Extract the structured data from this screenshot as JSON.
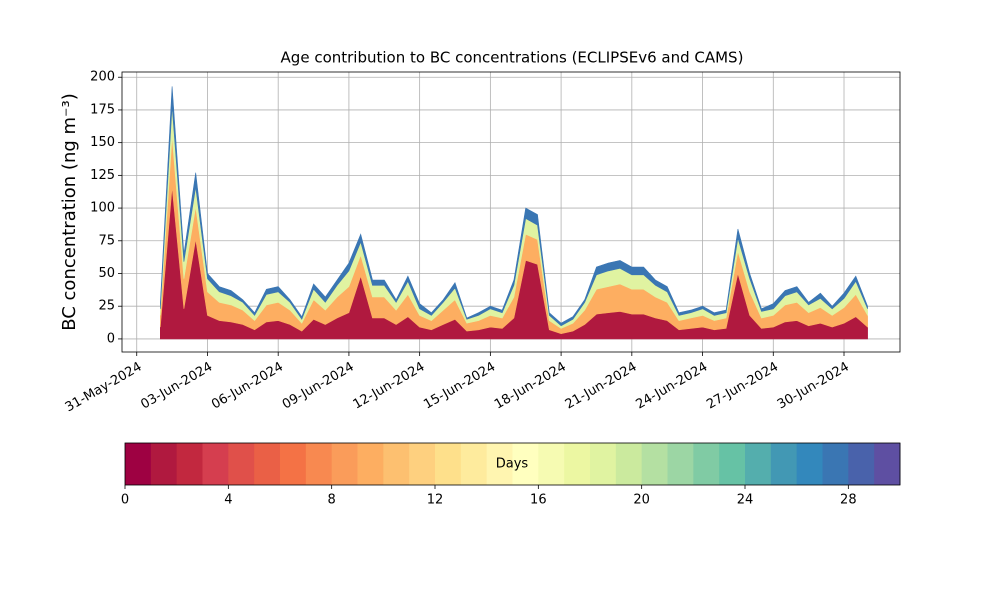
{
  "chart_data": [
    {
      "type": "stacked-area",
      "title": "Age contribution to BC concentrations (ECLIPSEv6 and CAMS)",
      "y_label": "BC concentration (ng m⁻³)",
      "x": [
        "2024-06-01 00:00",
        "2024-06-01 12:00",
        "2024-06-02 00:00",
        "2024-06-02 12:00",
        "2024-06-03 00:00",
        "2024-06-03 12:00",
        "2024-06-04 00:00",
        "2024-06-04 12:00",
        "2024-06-05 00:00",
        "2024-06-05 12:00",
        "2024-06-06 00:00",
        "2024-06-06 12:00",
        "2024-06-07 00:00",
        "2024-06-07 12:00",
        "2024-06-08 00:00",
        "2024-06-08 12:00",
        "2024-06-09 00:00",
        "2024-06-09 12:00",
        "2024-06-10 00:00",
        "2024-06-10 12:00",
        "2024-06-11 00:00",
        "2024-06-11 12:00",
        "2024-06-12 00:00",
        "2024-06-12 12:00",
        "2024-06-13 00:00",
        "2024-06-13 12:00",
        "2024-06-14 00:00",
        "2024-06-14 12:00",
        "2024-06-15 00:00",
        "2024-06-15 12:00",
        "2024-06-16 00:00",
        "2024-06-16 12:00",
        "2024-06-17 00:00",
        "2024-06-17 12:00",
        "2024-06-18 00:00",
        "2024-06-18 12:00",
        "2024-06-19 00:00",
        "2024-06-19 12:00",
        "2024-06-20 00:00",
        "2024-06-20 12:00",
        "2024-06-21 00:00",
        "2024-06-21 12:00",
        "2024-06-22 00:00",
        "2024-06-22 12:00",
        "2024-06-23 00:00",
        "2024-06-23 12:00",
        "2024-06-24 00:00",
        "2024-06-24 12:00",
        "2024-06-25 00:00",
        "2024-06-25 12:00",
        "2024-06-26 00:00",
        "2024-06-26 12:00",
        "2024-06-27 00:00",
        "2024-06-27 12:00",
        "2024-06-28 00:00",
        "2024-06-28 12:00",
        "2024-06-29 00:00",
        "2024-06-29 12:00",
        "2024-06-30 00:00",
        "2024-06-30 12:00",
        "2024-07-01 00:00"
      ],
      "series": [
        {
          "color": "#b0193f",
          "values": [
            9,
            116,
            23,
            76,
            18,
            14,
            13,
            11,
            7,
            13,
            14,
            11,
            6,
            15,
            11,
            16,
            20,
            48,
            16,
            16,
            11,
            17,
            9,
            7,
            11,
            15,
            6,
            7,
            9,
            8,
            16,
            60,
            57,
            7,
            4,
            6,
            11,
            19,
            20,
            21,
            19,
            19,
            16,
            14,
            7,
            8,
            9,
            7,
            8,
            50,
            18,
            8,
            9,
            13,
            14,
            10,
            12,
            9,
            12,
            17,
            9
          ]
        },
        {
          "color": "#fdae61",
          "values": [
            9,
            39,
            23,
            25,
            18,
            14,
            13,
            11,
            7,
            13,
            14,
            11,
            6,
            15,
            11,
            16,
            20,
            16,
            16,
            16,
            11,
            17,
            9,
            7,
            11,
            15,
            6,
            7,
            9,
            8,
            16,
            20,
            19,
            7,
            4,
            6,
            11,
            19,
            20,
            21,
            19,
            19,
            16,
            14,
            7,
            8,
            9,
            7,
            8,
            17,
            18,
            8,
            9,
            13,
            14,
            10,
            12,
            9,
            12,
            17,
            9
          ]
        },
        {
          "color": "#e0f3a1",
          "values": [
            5,
            23,
            13,
            15,
            10,
            8,
            7,
            6,
            4,
            8,
            8,
            6,
            3,
            8,
            6,
            9,
            12,
            10,
            9,
            9,
            6,
            10,
            5,
            4,
            6,
            9,
            3,
            4,
            5,
            4,
            9,
            12,
            11,
            4,
            2,
            3,
            6,
            11,
            12,
            12,
            11,
            11,
            9,
            8,
            4,
            4,
            5,
            4,
            4,
            10,
            10,
            5,
            5,
            7,
            8,
            6,
            7,
            5,
            7,
            10,
            5
          ]
        },
        {
          "color": "#3a76b3",
          "values": [
            4,
            15,
            6,
            11,
            4,
            4,
            4,
            2,
            2,
            4,
            4,
            2,
            2,
            4,
            4,
            4,
            6,
            6,
            4,
            4,
            2,
            4,
            4,
            2,
            2,
            4,
            1,
            2,
            2,
            2,
            4,
            8,
            8,
            2,
            2,
            2,
            2,
            6,
            6,
            6,
            6,
            6,
            4,
            4,
            2,
            2,
            2,
            2,
            2,
            7,
            4,
            2,
            4,
            4,
            4,
            2,
            4,
            2,
            4,
            4,
            2
          ]
        }
      ],
      "xlim": [
        "2024-05-30 09:00",
        "2024-07-02 09:00"
      ],
      "xticks": [
        {
          "value": "2024-05-31 00:00",
          "label": "31-May-2024"
        },
        {
          "value": "2024-06-03 00:00",
          "label": "03-Jun-2024"
        },
        {
          "value": "2024-06-06 00:00",
          "label": "06-Jun-2024"
        },
        {
          "value": "2024-06-09 00:00",
          "label": "09-Jun-2024"
        },
        {
          "value": "2024-06-12 00:00",
          "label": "12-Jun-2024"
        },
        {
          "value": "2024-06-15 00:00",
          "label": "15-Jun-2024"
        },
        {
          "value": "2024-06-18 00:00",
          "label": "18-Jun-2024"
        },
        {
          "value": "2024-06-21 00:00",
          "label": "21-Jun-2024"
        },
        {
          "value": "2024-06-24 00:00",
          "label": "24-Jun-2024"
        },
        {
          "value": "2024-06-27 00:00",
          "label": "27-Jun-2024"
        },
        {
          "value": "2024-06-30 00:00",
          "label": "30-Jun-2024"
        }
      ],
      "ylim": [
        -10,
        204
      ],
      "yticks": [
        0,
        25,
        50,
        75,
        100,
        125,
        150,
        175,
        200
      ],
      "grid": true
    },
    {
      "type": "colorbar",
      "label": "Days",
      "bins": [
        0,
        1,
        2,
        3,
        4,
        5,
        6,
        7,
        8,
        9,
        10,
        11,
        12,
        13,
        14,
        15,
        16,
        17,
        18,
        19,
        20,
        21,
        22,
        23,
        24,
        25,
        26,
        27,
        28,
        29,
        30
      ],
      "colors": [
        "#9e0142",
        "#b0193f",
        "#c2283f",
        "#d53e4f",
        "#e0504a",
        "#ea6046",
        "#f47245",
        "#f88950",
        "#fa9c5a",
        "#fdae61",
        "#fdc070",
        "#fed07f",
        "#fee08b",
        "#feeb9d",
        "#fff5b0",
        "#ffffbf",
        "#f6fbb2",
        "#ecf7a2",
        "#e0f3a1",
        "#cbea9e",
        "#b4e0a2",
        "#9cd6a4",
        "#80cba4",
        "#66c2a5",
        "#54aead",
        "#4298b4",
        "#3388bc",
        "#3a76b3",
        "#4962ab",
        "#5e4fa2"
      ],
      "xlim": [
        0,
        30
      ],
      "xticks": [
        0,
        4,
        8,
        12,
        16,
        20,
        24,
        28
      ]
    }
  ]
}
